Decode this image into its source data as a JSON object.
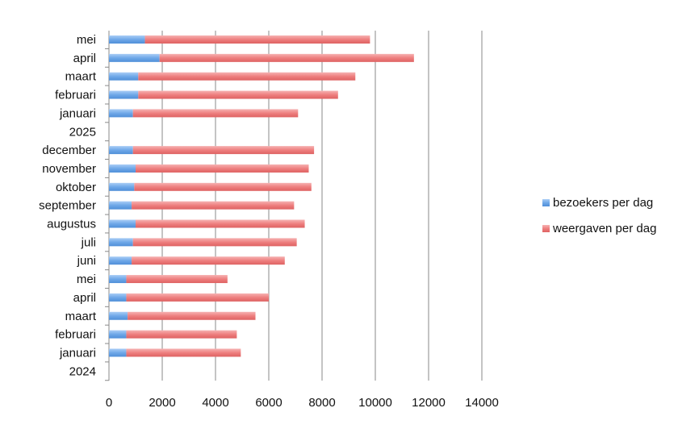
{
  "chart_data": {
    "type": "bar",
    "orientation": "horizontal",
    "stacked": true,
    "title": "",
    "xlabel": "",
    "ylabel": "",
    "xlim": [
      0,
      14000
    ],
    "x_ticks": [
      "0",
      "2000",
      "4000",
      "6000",
      "8000",
      "10000",
      "12000",
      "14000"
    ],
    "grid": "vertical",
    "legend_position": "right",
    "categories": [
      "mei",
      "april",
      "maart",
      "februari",
      "januari",
      "2025",
      "december",
      "november",
      "oktober",
      "september",
      "augustus",
      "juli",
      "juni",
      "mei",
      "april",
      "maart",
      "februari",
      "januari",
      "2024"
    ],
    "series": [
      {
        "name": "bezoekers per dag",
        "color": "#6fa8e8",
        "values": [
          1350,
          1900,
          1100,
          1100,
          900,
          null,
          900,
          1000,
          950,
          850,
          1000,
          900,
          850,
          650,
          650,
          700,
          650,
          650,
          null
        ]
      },
      {
        "name": "weergaven per dag",
        "color": "#ee7f7f",
        "values": [
          8450,
          9550,
          8150,
          7500,
          6200,
          null,
          6800,
          6500,
          6650,
          6100,
          6350,
          6150,
          5750,
          3800,
          5350,
          4800,
          4150,
          4300,
          null
        ]
      }
    ]
  }
}
